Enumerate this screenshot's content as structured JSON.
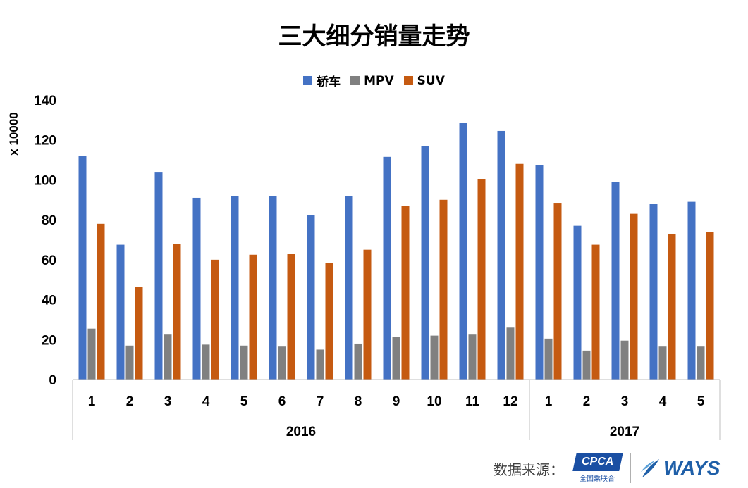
{
  "title": "三大细分销量走势",
  "legend": [
    {
      "name": "轿车",
      "color": "#4472C4"
    },
    {
      "name": "MPV",
      "color": "#808080"
    },
    {
      "name": "SUV",
      "color": "#C55A11"
    }
  ],
  "ylabel": "x 10000",
  "footer": {
    "source_label": "数据来源：",
    "logo1": "CPCA",
    "logo1_sub": "全国乘联合",
    "logo2": "WAYS"
  },
  "chart_data": {
    "type": "bar",
    "title": "三大细分销量走势",
    "ylabel": "x 10000",
    "ylim": [
      0,
      140
    ],
    "yticks": [
      0,
      20,
      40,
      60,
      80,
      100,
      120,
      140
    ],
    "categories": [
      "1",
      "2",
      "3",
      "4",
      "5",
      "6",
      "7",
      "8",
      "9",
      "10",
      "11",
      "12",
      "1",
      "2",
      "3",
      "4",
      "5"
    ],
    "groups": [
      {
        "label": "2016",
        "count": 12
      },
      {
        "label": "2017",
        "count": 5
      }
    ],
    "series": [
      {
        "name": "轿车",
        "color": "#4472C4",
        "values": [
          112,
          67.5,
          104,
          91,
          92,
          92,
          82.5,
          92,
          111.5,
          117,
          128.5,
          124.5,
          107.5,
          77,
          99,
          88,
          89
        ]
      },
      {
        "name": "MPV",
        "color": "#808080",
        "values": [
          25.5,
          17,
          22.5,
          17.5,
          17,
          16.5,
          15,
          18,
          21.5,
          22,
          22.5,
          26,
          20.5,
          14.5,
          19.5,
          16.5,
          16.5
        ]
      },
      {
        "name": "SUV",
        "color": "#C55A11",
        "values": [
          78,
          46.5,
          68,
          60,
          62.5,
          63,
          58.5,
          65,
          87,
          90,
          100.5,
          108,
          88.5,
          67.5,
          83,
          73,
          74
        ]
      }
    ],
    "grid": false,
    "legend_position": "top"
  }
}
